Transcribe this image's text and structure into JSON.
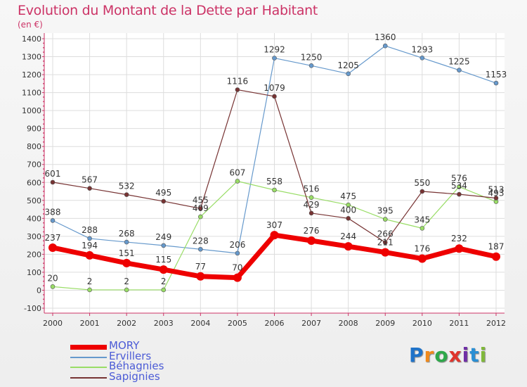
{
  "title": "Evolution du Montant de la Dette par Habitant",
  "subtitle": "(en €)",
  "colors": {
    "title": "#cc3366",
    "axis": "#cc3366",
    "legend_text": "#4b5bd6"
  },
  "logo": {
    "letters": [
      "P",
      "r",
      "o",
      "x",
      "i",
      "t",
      "i"
    ],
    "colors": [
      "#1f73c9",
      "#f08a1c",
      "#2ea84a",
      "#e0342c",
      "#6f2fa6",
      "#2a8fd4",
      "#80b83a"
    ]
  },
  "chart_data": {
    "type": "line",
    "x": [
      "2000",
      "2001",
      "2002",
      "2003",
      "2004",
      "2005",
      "2006",
      "2007",
      "2008",
      "2009",
      "2010",
      "2011",
      "2012"
    ],
    "ylim": [
      -100,
      1400
    ],
    "yticks": [
      -100,
      0,
      100,
      200,
      300,
      400,
      500,
      600,
      700,
      800,
      900,
      1000,
      1100,
      1200,
      1300,
      1400
    ],
    "grid": true,
    "legend_position": "bottom-left",
    "series": [
      {
        "name": "MORY",
        "color": "#ee0000",
        "width": 7,
        "values": [
          237,
          194,
          151,
          115,
          77,
          70,
          307,
          276,
          244,
          211,
          176,
          232,
          187
        ]
      },
      {
        "name": "Ervillers",
        "color": "#6699cc",
        "width": 1.2,
        "values": [
          388,
          288,
          268,
          249,
          228,
          206,
          1292,
          1250,
          1205,
          1360,
          1293,
          1225,
          1153
        ]
      },
      {
        "name": "Béhagnies",
        "color": "#99dd66",
        "width": 1.2,
        "values": [
          20,
          2,
          2,
          2,
          409,
          607,
          558,
          516,
          475,
          395,
          345,
          576,
          493
        ]
      },
      {
        "name": "Sapignies",
        "color": "#773333",
        "width": 1.2,
        "values": [
          601,
          567,
          532,
          495,
          455,
          1116,
          1079,
          429,
          400,
          266,
          550,
          534,
          513
        ]
      }
    ],
    "data_labels": [
      [
        "237",
        "194",
        "151",
        "115",
        "77",
        "70",
        "307",
        "276",
        "244",
        "211",
        "176",
        "232",
        "187"
      ],
      [
        "388",
        "288",
        "268",
        "249",
        "228",
        "206",
        "1292",
        "1250",
        "1205",
        "1360",
        "1293",
        "1225",
        "1153"
      ],
      [
        "20",
        "2",
        "2",
        "2",
        "409",
        "607",
        "558",
        "516",
        "475",
        "395",
        "345",
        "576",
        "493"
      ],
      [
        "601",
        "567",
        "532",
        "495",
        "455",
        "1116",
        "1079",
        "429",
        "400",
        "266",
        "550",
        "534",
        "513"
      ]
    ]
  }
}
